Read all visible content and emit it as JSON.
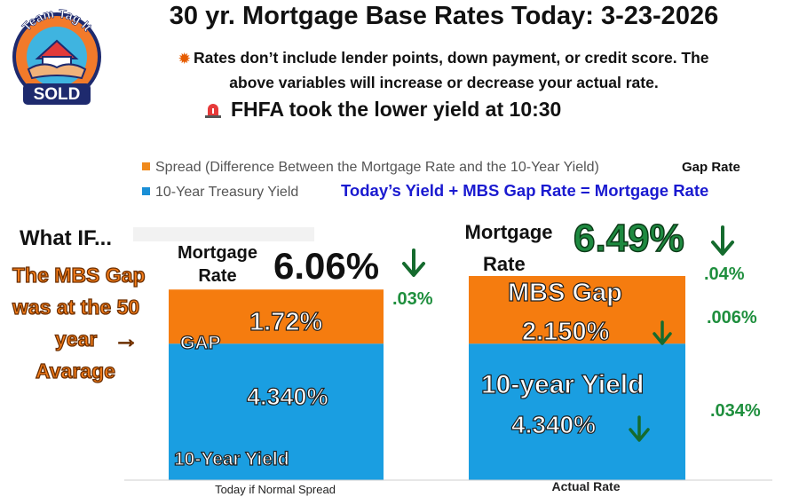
{
  "logo": {
    "top_text": "Team Tag It",
    "bottom_text": "SOLD"
  },
  "header": {
    "title": "30 yr. Mortgage Base Rates Today: 3-23-2026",
    "disclaimer_line1": "Rates don’t include lender points, down payment, or credit score. The",
    "disclaimer_line2": "above variables will increase or decrease your actual rate.",
    "alert": "FHFA took the lower yield at 10:30"
  },
  "formula": "Today’s  Yield +  MBS Gap Rate = Mortgage Rate",
  "gap_rate_word": "Gap Rate",
  "left_notes": {
    "what_if": "What IF...",
    "line1": "The MBS Gap",
    "line2": "was at the 50",
    "line3": "year",
    "arrow": "→",
    "line4": "Avarage"
  },
  "colors": {
    "spread": "#f57c0f",
    "treasury": "#1a9ee1",
    "green": "#1f8f3e",
    "formula_blue": "#1a1ad0"
  },
  "chart_data": {
    "type": "bar",
    "stacked": true,
    "categories": [
      "Today if Normal Spread",
      "Actual Rate"
    ],
    "series": [
      {
        "name": "10-Year Treasury Yield",
        "values": [
          4.34,
          4.34
        ]
      },
      {
        "name": "Spread (Difference Between the Mortgage Rate and the 10-Year Yield)",
        "values": [
          1.72,
          2.15
        ]
      }
    ],
    "ylim": [
      0,
      6.49
    ],
    "legend": "top-left",
    "legend_entries": [
      "Spread (Difference Between the Mortgage Rate and the 10-Year Yield)",
      "10-Year Treasury Yield"
    ],
    "bars": {
      "left": {
        "mortgage_label_line1": "Mortgage",
        "mortgage_label_line2": "Rate",
        "mortgage_rate": "6.06%",
        "rate_change": ".03%",
        "gap_word": "GAP",
        "gap_value": "1.72%",
        "yield_value": "4.340%",
        "yield_caption": "10-Year Yield"
      },
      "right": {
        "mortgage_label_line1": "Mortgage",
        "mortgage_label_line2": "Rate",
        "mortgage_rate": "6.49%",
        "rate_change": ".04%",
        "gap_word": "MBS Gap",
        "gap_value": "2.150%",
        "gap_change": ".006%",
        "yield_word": "10-year Yield",
        "yield_value": "4.340%",
        "yield_change": ".034%"
      }
    }
  }
}
